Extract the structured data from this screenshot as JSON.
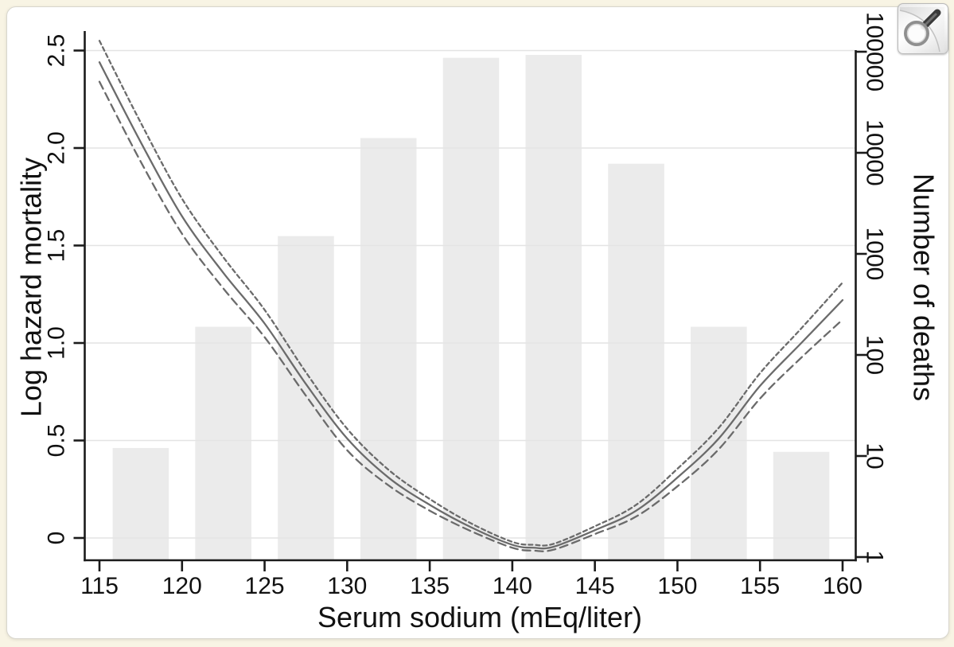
{
  "figure": {
    "x_axis_title": "Serum sodium (mEq/liter)",
    "y_left_axis_title": "Log hazard mortality",
    "y_right_axis_title": "Number of deaths"
  },
  "overlay": {
    "zoom_button_icon": "magnifier-icon",
    "zoom_button_label": "Zoom image"
  },
  "colors": {
    "page_background": "#f8f4e4",
    "card_background": "#ffffff",
    "bar_fill": "#ebebeb",
    "gridline": "#e4e4e4",
    "axis": "#1b1b1b",
    "text": "#111111",
    "curve": "#6b6b6b"
  },
  "chart_data": {
    "type": "line",
    "title": "",
    "grid": "horizontal-only",
    "legend_position": "none",
    "x_axis": {
      "label": "Serum sodium (mEq/liter)",
      "tick_values": [
        115,
        120,
        125,
        130,
        135,
        140,
        145,
        150,
        155,
        160
      ],
      "tick_labels": [
        "115",
        "120",
        "125",
        "130",
        "135",
        "140",
        "145",
        "150",
        "155",
        "160"
      ],
      "range": [
        114.1,
        160.8
      ]
    },
    "y_left_axis": {
      "label": "Log hazard mortality",
      "tick_values": [
        0,
        0.5,
        1.0,
        1.5,
        2.0,
        2.5
      ],
      "tick_labels": [
        "0",
        "0.5",
        "1.0",
        "1.5",
        "2.0",
        "2.5"
      ],
      "range": [
        -0.11,
        2.6
      ],
      "scale": "linear"
    },
    "y_right_axis": {
      "label": "Number of deaths",
      "tick_values": [
        1,
        10,
        100,
        1000,
        10000,
        100000
      ],
      "tick_labels": [
        "1",
        "10",
        "100",
        "1000",
        "10000",
        "100000"
      ],
      "range": [
        1,
        100000
      ],
      "scale": "log10"
    },
    "histogram": {
      "name": "Number of deaths per 5 mEq/liter bin",
      "axis": "right",
      "bin_centers": [
        117.5,
        122.5,
        127.5,
        132.5,
        137.5,
        142.5,
        147.5,
        152.5,
        157.5
      ],
      "counts": [
        12,
        190,
        1500,
        14000,
        87000,
        93000,
        7800,
        190,
        11
      ],
      "bar_width_units": 3.4
    },
    "series": [
      {
        "name": "Log hazard of mortality (point estimate)",
        "line_style": "solid",
        "axis": "left",
        "x": [
          115,
          117.5,
          120,
          122.5,
          125,
          127.5,
          130,
          132.5,
          135,
          137.5,
          140,
          141.3,
          142.5,
          145,
          147.5,
          150,
          152.5,
          155,
          157.5,
          160
        ],
        "y": [
          2.44,
          2.03,
          1.65,
          1.36,
          1.1,
          0.79,
          0.51,
          0.31,
          0.17,
          0.055,
          -0.035,
          -0.05,
          -0.045,
          0.04,
          0.14,
          0.31,
          0.51,
          0.78,
          1.0,
          1.22
        ]
      },
      {
        "name": "Upper 95% confidence limit",
        "line_style": "dashed-short",
        "axis": "left",
        "x": [
          115,
          117.5,
          120,
          122.5,
          125,
          127.5,
          130,
          132.5,
          135,
          137.5,
          140,
          141.3,
          142.5,
          145,
          147.5,
          150,
          152.5,
          155,
          157.5,
          160
        ],
        "y": [
          2.55,
          2.13,
          1.74,
          1.44,
          1.17,
          0.85,
          0.56,
          0.35,
          0.2,
          0.075,
          -0.02,
          -0.035,
          -0.03,
          0.06,
          0.17,
          0.355,
          0.565,
          0.845,
          1.075,
          1.31
        ]
      },
      {
        "name": "Lower 95% confidence limit",
        "line_style": "dashed-long",
        "axis": "left",
        "x": [
          115,
          117.5,
          120,
          122.5,
          125,
          127.5,
          130,
          132.5,
          135,
          137.5,
          140,
          141.3,
          142.5,
          145,
          147.5,
          150,
          152.5,
          155,
          157.5,
          160
        ],
        "y": [
          2.34,
          1.93,
          1.56,
          1.28,
          1.03,
          0.73,
          0.45,
          0.27,
          0.14,
          0.035,
          -0.05,
          -0.065,
          -0.06,
          0.02,
          0.11,
          0.265,
          0.455,
          0.715,
          0.925,
          1.12
        ]
      }
    ],
    "annotations": {
      "curve_minimum": {
        "x": 141,
        "y": -0.05
      }
    }
  }
}
